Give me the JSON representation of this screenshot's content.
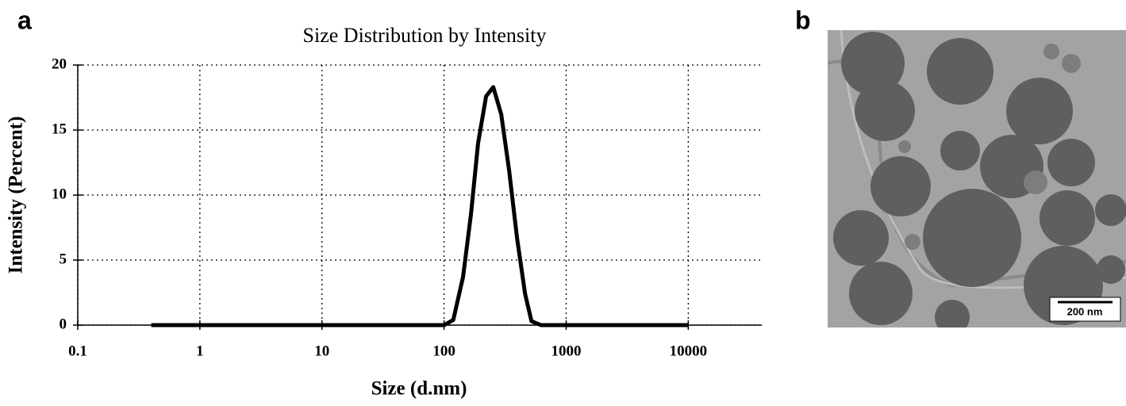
{
  "panel_labels": [
    "a",
    "b"
  ],
  "chart_data": {
    "type": "line",
    "title": "Size Distribution by Intensity",
    "x_label": "Size (d.nm)",
    "y_label": "Intensity (Percent)",
    "x_log": true,
    "grid": true,
    "xlim": [
      0.1,
      40000
    ],
    "xticks": [
      0.1,
      1,
      10,
      100,
      1000,
      10000
    ],
    "ylim": [
      0,
      20
    ],
    "yticks": [
      0,
      5,
      10,
      15,
      20
    ],
    "series": [
      {
        "color": "#000000",
        "x": [
          0.4,
          1,
          10,
          100,
          119,
          143,
          166,
          190,
          221,
          253,
          294,
          341,
          396,
          461,
          520,
          622,
          1000,
          10000
        ],
        "values": [
          0,
          0,
          0,
          0,
          0.4,
          3.7,
          8.5,
          14.0,
          17.6,
          18.3,
          16.2,
          11.9,
          6.7,
          2.4,
          0.3,
          0,
          0,
          0
        ]
      }
    ]
  },
  "image": {
    "scale_bar": "200 nm"
  }
}
